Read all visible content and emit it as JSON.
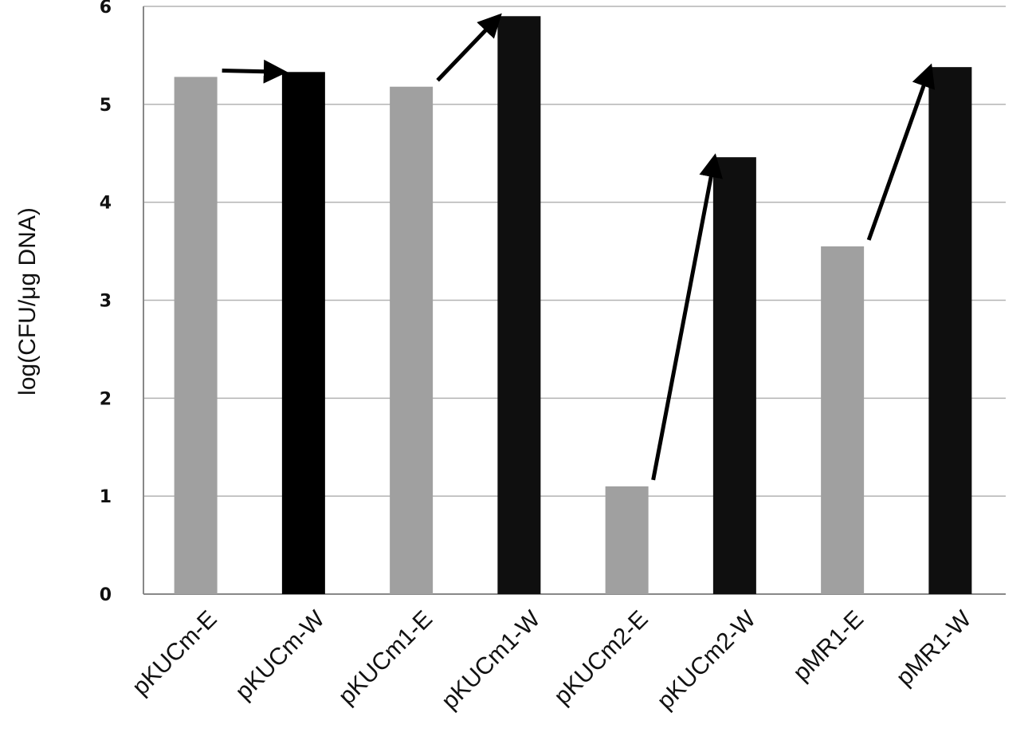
{
  "chart_data": {
    "type": "bar",
    "ylabel": "log(CFU/μg DNA)",
    "xlabel": "",
    "ylim": [
      0,
      6
    ],
    "yticks": [
      "0",
      "1",
      "2",
      "3",
      "4",
      "5",
      "6"
    ],
    "grid": true,
    "categories": [
      "pKUCm-E",
      "pKUCm-W",
      "pKUCm1-E",
      "pKUCm1-W",
      "pKUCm2-E",
      "pKUCm2-W",
      "pMR1-E",
      "pMR1-W"
    ],
    "values": [
      5.28,
      5.33,
      5.18,
      5.9,
      1.1,
      4.46,
      3.55,
      5.38
    ],
    "bar_colors": [
      "#a0a0a0",
      "#000000",
      "#a0a0a0",
      "#0f0f0f",
      "#a0a0a0",
      "#0f0f0f",
      "#a0a0a0",
      "#0f0f0f"
    ],
    "arrows": [
      {
        "from": 0,
        "to": 1
      },
      {
        "from": 2,
        "to": 3
      },
      {
        "from": 4,
        "to": 5
      },
      {
        "from": 6,
        "to": 7
      }
    ]
  }
}
